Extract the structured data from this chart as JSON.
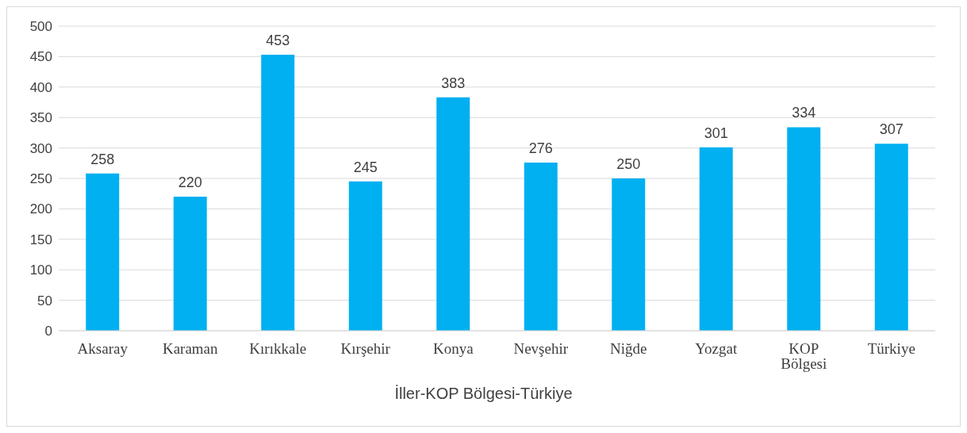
{
  "chart_data": {
    "type": "bar",
    "xlabel": "İller-KOP Bölgesi-Türkiye",
    "categories": [
      "Aksaray",
      "Karaman",
      "Kırıkkale",
      "Kırşehir",
      "Konya",
      "Nevşehir",
      "Niğde",
      "Yozgat",
      "KOP Bölgesi",
      "Türkiye"
    ],
    "values": [
      258,
      220,
      453,
      245,
      383,
      276,
      250,
      301,
      334,
      307
    ],
    "color": "#00b0f0",
    "ylim": [
      0,
      500
    ],
    "yticks": [
      0,
      50,
      100,
      150,
      200,
      250,
      300,
      350,
      400,
      450,
      500
    ],
    "grid": "y",
    "data_labels": true
  }
}
